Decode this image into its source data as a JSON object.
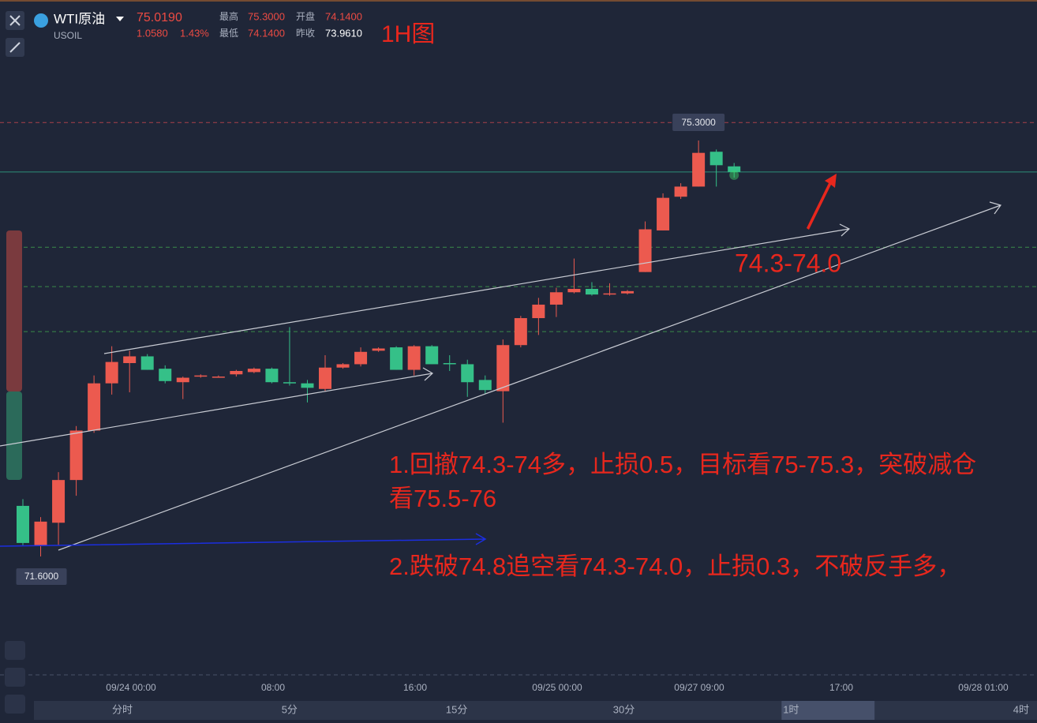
{
  "header": {
    "symbol": "WTI原油",
    "code": "USOIL",
    "price": "75.0190",
    "change": "1.0580",
    "change_pct": "1.43%",
    "high_label": "最高",
    "high": "75.3000",
    "open_label": "开盘",
    "open": "74.1400",
    "low_label": "最低",
    "low": "74.1400",
    "prev_label": "昨收",
    "prev_close": "73.9610",
    "timeframe_note": "1H图"
  },
  "chart_data": {
    "type": "candlestick",
    "up_color": "#ec5a4f",
    "down_color": "#35c088",
    "ohlc": [
      [
        72.05,
        72.11,
        71.7,
        71.72
      ],
      [
        71.7,
        71.95,
        71.6,
        71.91
      ],
      [
        71.9,
        72.35,
        71.7,
        72.28
      ],
      [
        72.28,
        72.76,
        72.14,
        72.72
      ],
      [
        72.72,
        73.21,
        72.7,
        73.14
      ],
      [
        73.14,
        73.47,
        73.04,
        73.33
      ],
      [
        73.32,
        73.43,
        73.06,
        73.38
      ],
      [
        73.38,
        73.4,
        73.26,
        73.26
      ],
      [
        73.27,
        73.3,
        73.14,
        73.16
      ],
      [
        73.15,
        73.2,
        73.0,
        73.19
      ],
      [
        73.2,
        73.22,
        73.19,
        73.21
      ],
      [
        73.2,
        73.21,
        73.19,
        73.2
      ],
      [
        73.22,
        73.26,
        73.2,
        73.25
      ],
      [
        73.24,
        73.28,
        73.23,
        73.27
      ],
      [
        73.27,
        73.28,
        73.14,
        73.15
      ],
      [
        73.15,
        73.64,
        73.12,
        73.14
      ],
      [
        73.14,
        73.17,
        72.97,
        73.1
      ],
      [
        73.09,
        73.39,
        73.07,
        73.28
      ],
      [
        73.28,
        73.32,
        73.27,
        73.31
      ],
      [
        73.31,
        73.46,
        73.29,
        73.42
      ],
      [
        73.43,
        73.46,
        73.42,
        73.45
      ],
      [
        73.46,
        73.47,
        73.26,
        73.26
      ],
      [
        73.26,
        73.48,
        73.21,
        73.47
      ],
      [
        73.47,
        73.48,
        73.31,
        73.31
      ],
      [
        73.32,
        73.39,
        73.25,
        73.31
      ],
      [
        73.31,
        73.35,
        73.02,
        73.15
      ],
      [
        73.17,
        73.21,
        73.05,
        73.08
      ],
      [
        73.07,
        73.53,
        72.79,
        73.48
      ],
      [
        73.48,
        73.74,
        73.46,
        73.72
      ],
      [
        73.72,
        73.9,
        73.57,
        73.84
      ],
      [
        73.84,
        73.99,
        73.73,
        73.95
      ],
      [
        73.95,
        74.25,
        73.94,
        73.98
      ],
      [
        73.98,
        74.04,
        73.92,
        73.93
      ],
      [
        73.93,
        74.03,
        73.92,
        73.94
      ],
      [
        73.94,
        73.97,
        73.93,
        73.96
      ],
      [
        74.13,
        74.58,
        74.13,
        74.51
      ],
      [
        74.5,
        74.83,
        74.5,
        74.79
      ],
      [
        74.8,
        74.92,
        74.78,
        74.89
      ],
      [
        74.89,
        75.3,
        74.89,
        75.19
      ],
      [
        75.2,
        75.22,
        74.89,
        75.08
      ],
      [
        75.07,
        75.1,
        74.97,
        75.02
      ]
    ],
    "max_label": "75.3000",
    "min_label": "71.6000",
    "price_line": 75.02,
    "resistance_line": 75.46,
    "support_lines": [
      74.35,
      74.0,
      73.6
    ],
    "x_labels": [
      "09/24 00:00",
      "08:00",
      "16:00",
      "09/25 00:00",
      "09/27 09:00",
      "17:00",
      "09/28 01:00"
    ],
    "annotations": [
      "74.3-74.0",
      "1.回撤74.3-74多，止损0.5，目标看75-75.3，突破减仓",
      "看75.5-76",
      "2.跌破74.8追空看74.3-74.0，止损0.3，不破反手多，"
    ]
  },
  "tabs": [
    "分时",
    "5分",
    "15分",
    "30分",
    "1时",
    "4时"
  ],
  "active_tab": 4
}
